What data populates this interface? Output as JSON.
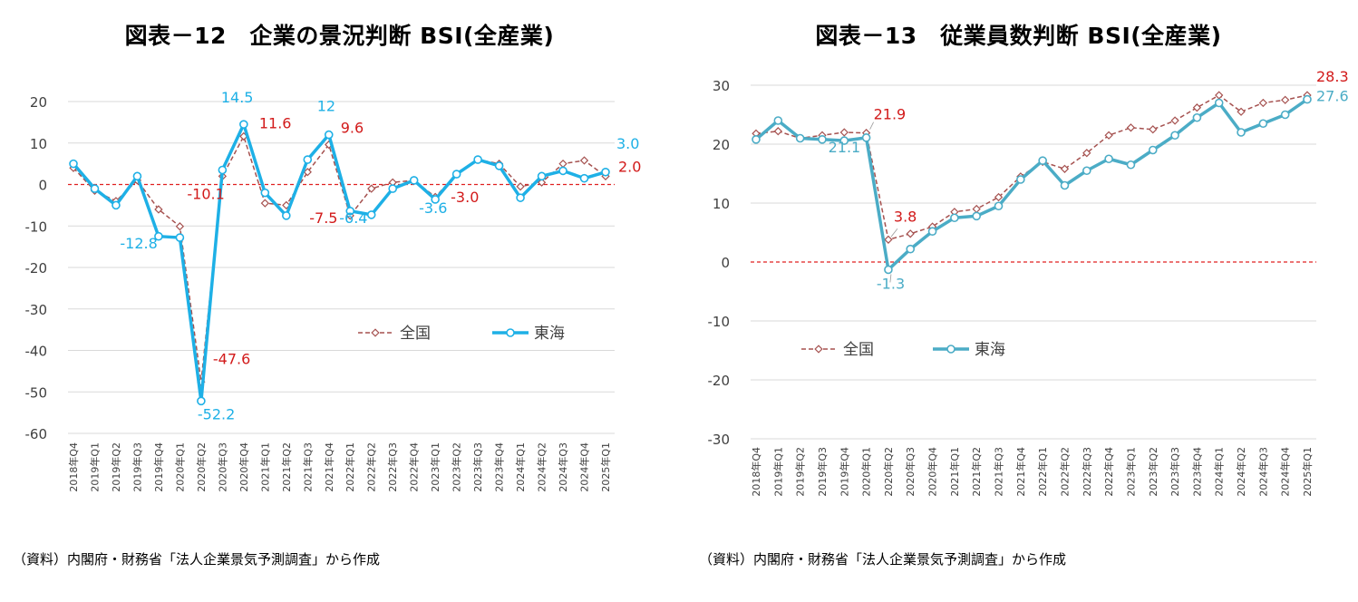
{
  "colors": {
    "zenkoku": "#A5514F",
    "tokai_left": "#1EB0E6",
    "tokai_right": "#4BACC6",
    "zero_line": "#E02020",
    "zenkoku_label": "#D21A1A",
    "grid": "#D9D9D9"
  },
  "source_text": "（資料）内閣府・財務省「法人企業景気予測調査」から作成",
  "chart_data": [
    {
      "title": "図表－12　企業の景況判断 BSI(全産業)",
      "type": "line",
      "categories": [
        "2018年Q4",
        "2019年Q1",
        "2019年Q2",
        "2019年Q3",
        "2019年Q4",
        "2020年Q1",
        "2020年Q2",
        "2020年Q3",
        "2020年Q4",
        "2021年Q1",
        "2021年Q2",
        "2021年Q3",
        "2021年Q4",
        "2022年Q1",
        "2022年Q2",
        "2022年Q3",
        "2022年Q4",
        "2023年Q1",
        "2023年Q2",
        "2023年Q3",
        "2023年Q4",
        "2024年Q1",
        "2024年Q2",
        "2024年Q3",
        "2024年Q4",
        "2025年Q1"
      ],
      "ylim": [
        -60,
        20
      ],
      "yticks": [
        "20",
        "10",
        "0",
        "-10",
        "-20",
        "-30",
        "-40",
        "-50",
        "-60"
      ],
      "grid": true,
      "legend_position": "center-right",
      "series": [
        {
          "name": "全国",
          "values": [
            4.0,
            -1.5,
            -4.0,
            1.0,
            -6.0,
            -10.1,
            -47.6,
            2.0,
            11.6,
            -4.5,
            -5.0,
            3.0,
            9.6,
            -7.5,
            -1.0,
            0.5,
            1.0,
            -3.0,
            2.5,
            6.0,
            5.0,
            -0.5,
            0.5,
            5.0,
            5.8,
            2.0
          ]
        },
        {
          "name": "東海",
          "values": [
            5.0,
            -1.0,
            -5.0,
            2.0,
            -12.5,
            -12.8,
            -52.2,
            3.5,
            14.5,
            -2.0,
            -7.5,
            6.0,
            12.0,
            -6.4,
            -7.3,
            -1.0,
            1.0,
            -3.6,
            2.5,
            6.0,
            4.5,
            -3.2,
            2.0,
            3.3,
            1.5,
            3.0
          ]
        }
      ],
      "annotations": [
        {
          "series": "全国",
          "index": 5,
          "text": "-10.1"
        },
        {
          "series": "全国",
          "index": 6,
          "text": "-47.6"
        },
        {
          "series": "全国",
          "index": 8,
          "text": "11.6"
        },
        {
          "series": "全国",
          "index": 12,
          "text": "9.6"
        },
        {
          "series": "全国",
          "index": 13,
          "text": "-7.5"
        },
        {
          "series": "全国",
          "index": 17,
          "text": "-3.0"
        },
        {
          "series": "全国",
          "index": 25,
          "text": "2.0"
        },
        {
          "series": "東海",
          "index": 5,
          "text": "-12.8"
        },
        {
          "series": "東海",
          "index": 6,
          "text": "-52.2"
        },
        {
          "series": "東海",
          "index": 8,
          "text": "14.5"
        },
        {
          "series": "東海",
          "index": 12,
          "text": "12"
        },
        {
          "series": "東海",
          "index": 13,
          "text": "-6.4"
        },
        {
          "series": "東海",
          "index": 17,
          "text": "-3.6"
        },
        {
          "series": "東海",
          "index": 25,
          "text": "3.0"
        }
      ]
    },
    {
      "title": "図表－13　従業員数判断 BSI(全産業)",
      "type": "line",
      "categories": [
        "2018年Q4",
        "2019年Q1",
        "2019年Q2",
        "2019年Q3",
        "2019年Q4",
        "2020年Q1",
        "2020年Q2",
        "2020年Q3",
        "2020年Q4",
        "2021年Q1",
        "2021年Q2",
        "2021年Q3",
        "2021年Q4",
        "2022年Q1",
        "2022年Q2",
        "2022年Q3",
        "2022年Q4",
        "2023年Q1",
        "2023年Q2",
        "2023年Q3",
        "2023年Q4",
        "2024年Q1",
        "2024年Q2",
        "2024年Q3",
        "2024年Q4",
        "2025年Q1"
      ],
      "ylim": [
        -30,
        30
      ],
      "yticks": [
        "30",
        "20",
        "10",
        "0",
        "-10",
        "-20",
        "-30"
      ],
      "grid": true,
      "legend_position": "bottom-center",
      "series": [
        {
          "name": "全国",
          "values": [
            21.8,
            22.2,
            21.0,
            21.5,
            22.0,
            21.9,
            3.8,
            4.8,
            6.0,
            8.5,
            9.0,
            11.0,
            14.5,
            17.0,
            15.8,
            18.5,
            21.5,
            22.8,
            22.5,
            24.0,
            26.2,
            28.3,
            25.5,
            27.0,
            27.5,
            28.3
          ]
        },
        {
          "name": "東海",
          "values": [
            20.8,
            24.0,
            21.0,
            20.8,
            20.6,
            21.1,
            -1.3,
            2.2,
            5.2,
            7.5,
            7.8,
            9.5,
            14.0,
            17.2,
            13.0,
            15.5,
            17.5,
            16.5,
            19.0,
            21.5,
            24.5,
            27.0,
            22.0,
            23.5,
            25.0,
            27.6
          ]
        }
      ],
      "annotations": [
        {
          "series": "全国",
          "index": 5,
          "text": "21.9"
        },
        {
          "series": "全国",
          "index": 6,
          "text": "3.8"
        },
        {
          "series": "全国",
          "index": 25,
          "text": "28.3"
        },
        {
          "series": "東海",
          "index": 5,
          "text": "21.1"
        },
        {
          "series": "東海",
          "index": 6,
          "text": "-1.3"
        },
        {
          "series": "東海",
          "index": 25,
          "text": "27.6"
        }
      ]
    }
  ]
}
